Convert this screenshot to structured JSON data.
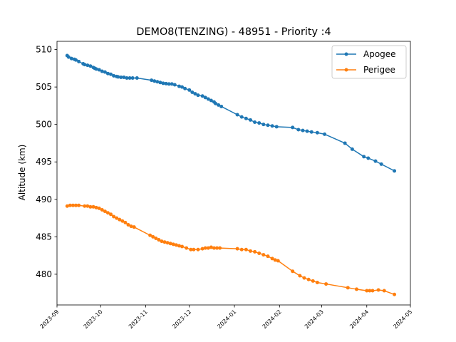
{
  "chart_data": {
    "type": "line",
    "title": "DEMO8(TENZING) - 48951 - Priority :4",
    "xlabel": "",
    "ylabel": "Altitude (km)",
    "xlim": [
      "2023-09-01",
      "2024-05-01"
    ],
    "ylim": [
      475.9,
      511.1
    ],
    "x_ticks": [
      "2023-09",
      "2023-10",
      "2023-11",
      "2023-12",
      "2024-01",
      "2024-02",
      "2024-03",
      "2024-04",
      "2024-05"
    ],
    "y_ticks": [
      480,
      485,
      490,
      495,
      500,
      505,
      510
    ],
    "grid": false,
    "legend_position": "top-right",
    "series": [
      {
        "name": "Apogee",
        "color": "#1f77b4",
        "marker": "circle",
        "points": [
          [
            "2023-09-08",
            509.2
          ],
          [
            "2023-09-09",
            509.0
          ],
          [
            "2023-09-11",
            508.8
          ],
          [
            "2023-09-13",
            508.7
          ],
          [
            "2023-09-14",
            508.6
          ],
          [
            "2023-09-16",
            508.4
          ],
          [
            "2023-09-19",
            508.1
          ],
          [
            "2023-09-20",
            508.0
          ],
          [
            "2023-09-22",
            507.9
          ],
          [
            "2023-09-24",
            507.8
          ],
          [
            "2023-09-26",
            507.6
          ],
          [
            "2023-09-27",
            507.5
          ],
          [
            "2023-09-28",
            507.4
          ],
          [
            "2023-09-30",
            507.3
          ],
          [
            "2023-10-02",
            507.1
          ],
          [
            "2023-10-04",
            507.0
          ],
          [
            "2023-10-06",
            506.8
          ],
          [
            "2023-10-08",
            506.7
          ],
          [
            "2023-10-10",
            506.5
          ],
          [
            "2023-10-12",
            506.4
          ],
          [
            "2023-10-13",
            506.35
          ],
          [
            "2023-10-15",
            506.3
          ],
          [
            "2023-10-17",
            506.3
          ],
          [
            "2023-10-19",
            506.2
          ],
          [
            "2023-10-21",
            506.2
          ],
          [
            "2023-10-23",
            506.2
          ],
          [
            "2023-10-26",
            506.2
          ],
          [
            "2023-11-05",
            505.9
          ],
          [
            "2023-11-07",
            505.8
          ],
          [
            "2023-11-09",
            505.7
          ],
          [
            "2023-11-11",
            505.6
          ],
          [
            "2023-11-13",
            505.5
          ],
          [
            "2023-11-15",
            505.45
          ],
          [
            "2023-11-17",
            505.4
          ],
          [
            "2023-11-19",
            505.4
          ],
          [
            "2023-11-21",
            505.3
          ],
          [
            "2023-11-24",
            505.1
          ],
          [
            "2023-11-26",
            505.0
          ],
          [
            "2023-11-28",
            504.8
          ],
          [
            "2023-12-01",
            504.6
          ],
          [
            "2023-12-03",
            504.3
          ],
          [
            "2023-12-05",
            504.1
          ],
          [
            "2023-12-07",
            503.9
          ],
          [
            "2023-12-10",
            503.8
          ],
          [
            "2023-12-12",
            503.6
          ],
          [
            "2023-12-14",
            503.4
          ],
          [
            "2023-12-16",
            503.2
          ],
          [
            "2023-12-18",
            503.0
          ],
          [
            "2023-12-19",
            502.8
          ],
          [
            "2023-12-21",
            502.6
          ],
          [
            "2023-12-23",
            502.4
          ],
          [
            "2024-01-03",
            501.3
          ],
          [
            "2024-01-06",
            501.0
          ],
          [
            "2024-01-09",
            500.8
          ],
          [
            "2024-01-12",
            500.6
          ],
          [
            "2024-01-15",
            500.3
          ],
          [
            "2024-01-18",
            500.2
          ],
          [
            "2024-01-21",
            500.0
          ],
          [
            "2024-01-24",
            499.9
          ],
          [
            "2024-01-27",
            499.8
          ],
          [
            "2024-01-30",
            499.7
          ],
          [
            "2024-02-10",
            499.6
          ],
          [
            "2024-02-14",
            499.3
          ],
          [
            "2024-02-17",
            499.2
          ],
          [
            "2024-02-20",
            499.1
          ],
          [
            "2024-02-23",
            499.0
          ],
          [
            "2024-02-27",
            498.9
          ],
          [
            "2024-03-03",
            498.7
          ],
          [
            "2024-03-17",
            497.5
          ],
          [
            "2024-03-22",
            496.7
          ],
          [
            "2024-03-30",
            495.7
          ],
          [
            "2024-04-02",
            495.5
          ],
          [
            "2024-04-07",
            495.1
          ],
          [
            "2024-04-11",
            494.7
          ],
          [
            "2024-04-20",
            493.8
          ]
        ]
      },
      {
        "name": "Perigee",
        "color": "#ff7f0e",
        "marker": "circle",
        "points": [
          [
            "2023-09-08",
            489.1
          ],
          [
            "2023-09-10",
            489.2
          ],
          [
            "2023-09-12",
            489.2
          ],
          [
            "2023-09-14",
            489.2
          ],
          [
            "2023-09-16",
            489.2
          ],
          [
            "2023-09-20",
            489.1
          ],
          [
            "2023-09-22",
            489.1
          ],
          [
            "2023-09-24",
            489.0
          ],
          [
            "2023-09-26",
            489.0
          ],
          [
            "2023-09-28",
            488.9
          ],
          [
            "2023-09-30",
            488.8
          ],
          [
            "2023-10-02",
            488.6
          ],
          [
            "2023-10-04",
            488.4
          ],
          [
            "2023-10-06",
            488.2
          ],
          [
            "2023-10-08",
            488.0
          ],
          [
            "2023-10-10",
            487.7
          ],
          [
            "2023-10-12",
            487.5
          ],
          [
            "2023-10-14",
            487.3
          ],
          [
            "2023-10-16",
            487.1
          ],
          [
            "2023-10-18",
            486.9
          ],
          [
            "2023-10-20",
            486.6
          ],
          [
            "2023-10-22",
            486.4
          ],
          [
            "2023-10-24",
            486.3
          ],
          [
            "2023-11-04",
            485.2
          ],
          [
            "2023-11-06",
            485.0
          ],
          [
            "2023-11-08",
            484.8
          ],
          [
            "2023-11-10",
            484.6
          ],
          [
            "2023-11-12",
            484.4
          ],
          [
            "2023-11-14",
            484.3
          ],
          [
            "2023-11-16",
            484.2
          ],
          [
            "2023-11-18",
            484.1
          ],
          [
            "2023-11-20",
            484.0
          ],
          [
            "2023-11-22",
            483.9
          ],
          [
            "2023-11-24",
            483.8
          ],
          [
            "2023-11-26",
            483.7
          ],
          [
            "2023-11-29",
            483.5
          ],
          [
            "2023-12-02",
            483.3
          ],
          [
            "2023-12-04",
            483.3
          ],
          [
            "2023-12-07",
            483.3
          ],
          [
            "2023-12-10",
            483.4
          ],
          [
            "2023-12-12",
            483.5
          ],
          [
            "2023-12-14",
            483.5
          ],
          [
            "2023-12-16",
            483.6
          ],
          [
            "2023-12-18",
            483.5
          ],
          [
            "2023-12-20",
            483.5
          ],
          [
            "2023-12-22",
            483.5
          ],
          [
            "2024-01-03",
            483.4
          ],
          [
            "2024-01-06",
            483.3
          ],
          [
            "2024-01-09",
            483.3
          ],
          [
            "2024-01-12",
            483.1
          ],
          [
            "2024-01-15",
            483.0
          ],
          [
            "2024-01-18",
            482.8
          ],
          [
            "2024-01-21",
            482.6
          ],
          [
            "2024-01-24",
            482.4
          ],
          [
            "2024-01-27",
            482.1
          ],
          [
            "2024-01-29",
            481.9
          ],
          [
            "2024-01-31",
            481.8
          ],
          [
            "2024-02-10",
            480.4
          ],
          [
            "2024-02-15",
            479.8
          ],
          [
            "2024-02-18",
            479.5
          ],
          [
            "2024-02-21",
            479.3
          ],
          [
            "2024-02-24",
            479.1
          ],
          [
            "2024-02-27",
            478.9
          ],
          [
            "2024-03-04",
            478.7
          ],
          [
            "2024-03-19",
            478.2
          ],
          [
            "2024-03-25",
            478.0
          ],
          [
            "2024-04-01",
            477.8
          ],
          [
            "2024-04-03",
            477.8
          ],
          [
            "2024-04-05",
            477.8
          ],
          [
            "2024-04-09",
            477.9
          ],
          [
            "2024-04-13",
            477.8
          ],
          [
            "2024-04-20",
            477.3
          ]
        ]
      }
    ]
  }
}
